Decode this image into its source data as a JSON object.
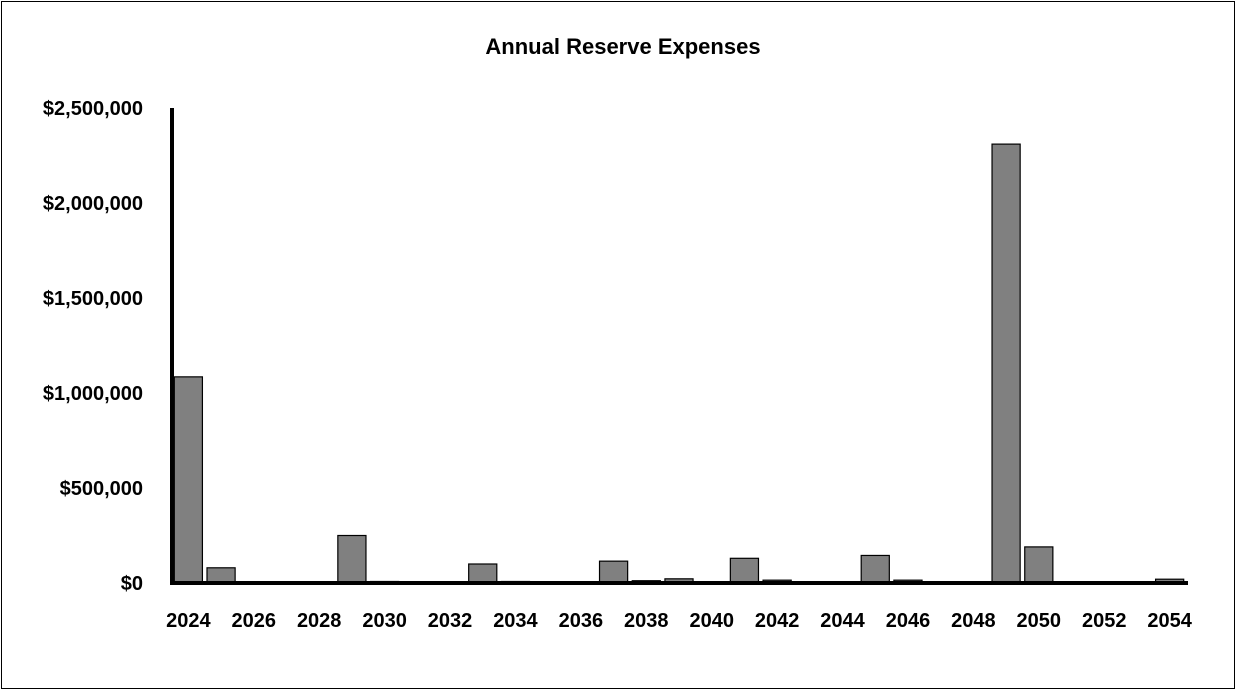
{
  "chart_data": {
    "type": "bar",
    "title": "Annual Reserve Expenses",
    "xlabel": "",
    "ylabel": "",
    "ylim": [
      0,
      2500000
    ],
    "y_ticks": [
      0,
      500000,
      1000000,
      1500000,
      2000000,
      2500000
    ],
    "y_tick_labels": [
      "$0",
      "$500,000",
      "$1,000,000",
      "$1,500,000",
      "$2,000,000",
      "$2,500,000"
    ],
    "x_tick_labels": [
      "2024",
      "2026",
      "2028",
      "2030",
      "2032",
      "2034",
      "2036",
      "2038",
      "2040",
      "2042",
      "2044",
      "2046",
      "2048",
      "2050",
      "2052",
      "2054"
    ],
    "categories": [
      "2024",
      "2025",
      "2026",
      "2027",
      "2028",
      "2029",
      "2030",
      "2031",
      "2032",
      "2033",
      "2034",
      "2035",
      "2036",
      "2037",
      "2038",
      "2039",
      "2040",
      "2041",
      "2042",
      "2043",
      "2044",
      "2045",
      "2046",
      "2047",
      "2048",
      "2049",
      "2050",
      "2051",
      "2052",
      "2053",
      "2054"
    ],
    "values": [
      1085000,
      80000,
      0,
      0,
      0,
      250000,
      8000,
      0,
      0,
      100000,
      8000,
      0,
      0,
      115000,
      12000,
      22000,
      0,
      130000,
      15000,
      0,
      0,
      145000,
      15000,
      0,
      0,
      2310000,
      190000,
      0,
      0,
      0,
      20000
    ],
    "bar_color": "#808080",
    "grid": false,
    "legend": "none"
  }
}
